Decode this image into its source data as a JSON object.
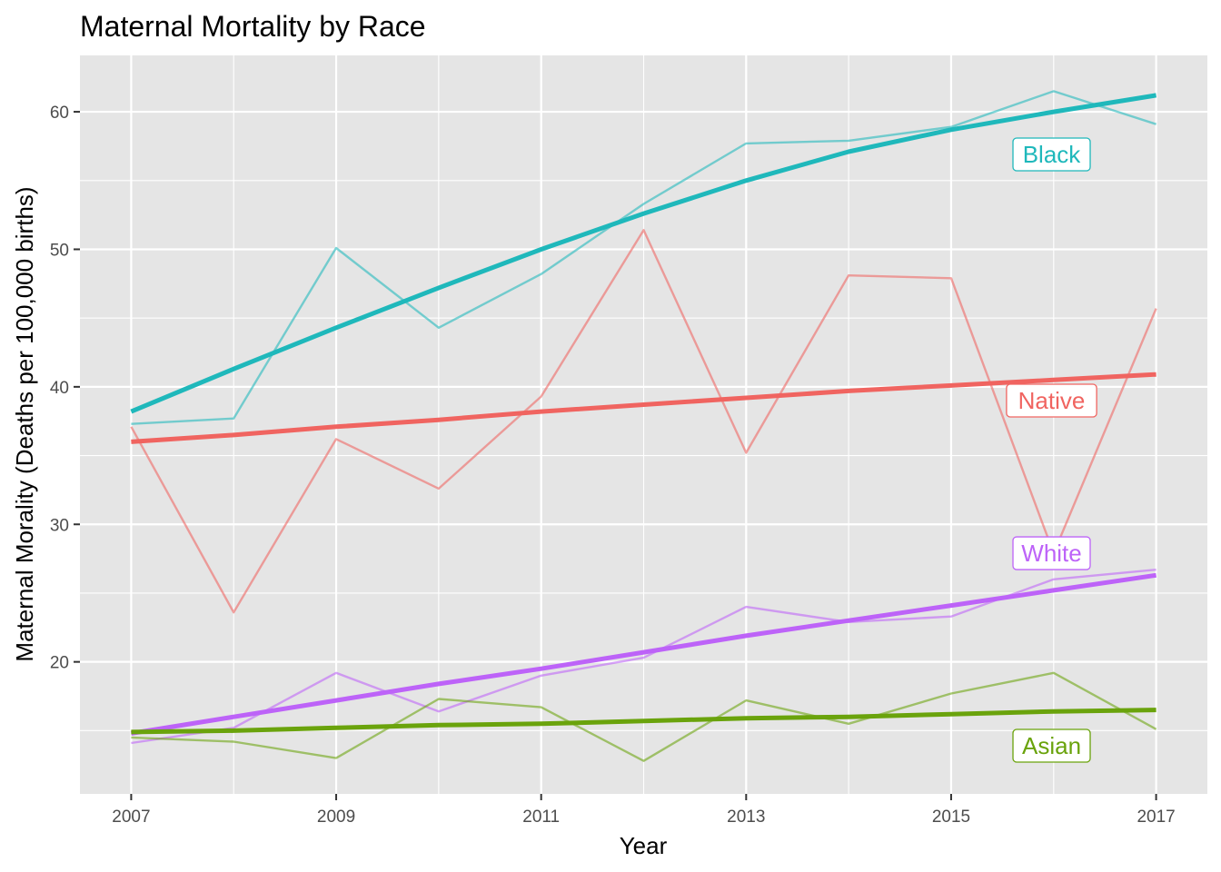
{
  "chart_data": {
    "type": "line",
    "title": "Maternal Mortality by Race",
    "xlabel": "Year",
    "ylabel": "Maternal Morality (Deaths per 100,000 births)",
    "x": [
      2007,
      2008,
      2009,
      2010,
      2011,
      2012,
      2013,
      2014,
      2015,
      2016,
      2017
    ],
    "xticks": [
      "2007",
      "2009",
      "2011",
      "2013",
      "2015",
      "2017"
    ],
    "yticks": [
      "20",
      "30",
      "40",
      "50",
      "60"
    ],
    "xlim": [
      2006.5,
      2017.5
    ],
    "ylim": [
      10.4,
      64.1
    ],
    "grid": true,
    "legend": "none (direct labels near right edge)",
    "series": [
      {
        "name": "Black",
        "color": "#1fb8bb",
        "values": [
          37.3,
          37.7,
          50.1,
          44.3,
          48.2,
          53.3,
          57.7,
          57.9,
          58.9,
          61.5,
          59.1
        ],
        "trend": [
          38.2,
          41.3,
          44.3,
          47.2,
          50.0,
          52.6,
          55.0,
          57.1,
          58.7,
          60.0,
          61.2
        ]
      },
      {
        "name": "Native",
        "color": "#f06460",
        "values": [
          37.1,
          23.6,
          36.2,
          32.6,
          39.3,
          51.4,
          35.2,
          48.1,
          47.9,
          27.9,
          45.7
        ],
        "trend": [
          36.0,
          36.5,
          37.1,
          37.6,
          38.2,
          38.7,
          39.2,
          39.7,
          40.1,
          40.5,
          40.9
        ]
      },
      {
        "name": "White",
        "color": "#bd63f8",
        "values": [
          14.1,
          15.2,
          19.2,
          16.4,
          19.0,
          20.3,
          24.0,
          22.9,
          23.3,
          26.0,
          26.7
        ],
        "trend": [
          14.8,
          16.0,
          17.2,
          18.4,
          19.5,
          20.7,
          21.9,
          23.0,
          24.1,
          25.2,
          26.3
        ]
      },
      {
        "name": "Asian",
        "color": "#6aa30c",
        "values": [
          14.5,
          14.2,
          13.0,
          17.3,
          16.7,
          12.8,
          17.2,
          15.5,
          17.7,
          19.2,
          15.1
        ],
        "trend": [
          14.9,
          15.0,
          15.2,
          15.4,
          15.5,
          15.7,
          15.9,
          16.0,
          16.2,
          16.4,
          16.5
        ]
      }
    ],
    "annotations": [
      {
        "text": "Black",
        "x": 2015.98,
        "y": 56.9,
        "color": "#1fb8bb"
      },
      {
        "text": "Native",
        "x": 2015.98,
        "y": 39.0,
        "color": "#f06460"
      },
      {
        "text": "White",
        "x": 2015.98,
        "y": 27.9,
        "color": "#bd63f8"
      },
      {
        "text": "Asian",
        "x": 2015.98,
        "y": 13.9,
        "color": "#6aa30c"
      }
    ],
    "panel_color": "#e5e5e5",
    "grid_color": "#ffffff"
  }
}
